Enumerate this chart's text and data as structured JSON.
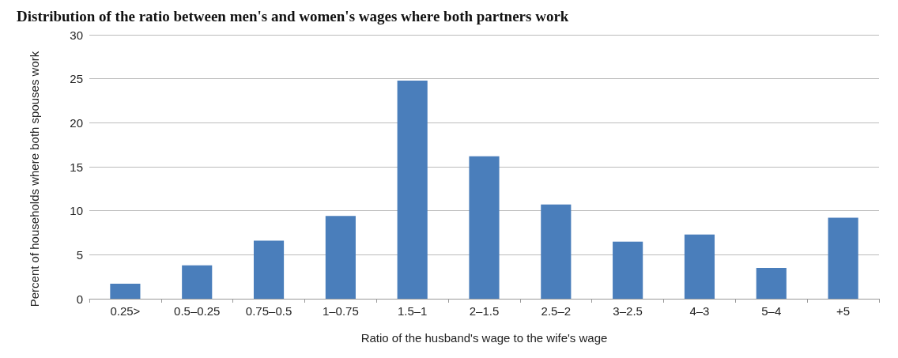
{
  "chart_data": {
    "type": "bar",
    "title": "Distribution of the ratio between men's and women's wages where both partners work",
    "xlabel": "Ratio of the husband's wage to the wife's wage",
    "ylabel": "Percent of households where both spouses work",
    "categories": [
      "0.25>",
      "0.5–0.25",
      "0.75–0.5",
      "1–0.75",
      "1.5–1",
      "2–1.5",
      "2.5–2",
      "3–2.5",
      "4–3",
      "5–4",
      "+5"
    ],
    "values": [
      1.7,
      3.8,
      6.6,
      9.4,
      24.8,
      16.2,
      10.7,
      6.5,
      7.3,
      3.5,
      9.2
    ],
    "color": "#4a7ebb",
    "ylim": [
      0,
      30
    ],
    "yticks": [
      0,
      5,
      10,
      15,
      20,
      25,
      30
    ],
    "grid": "y"
  }
}
